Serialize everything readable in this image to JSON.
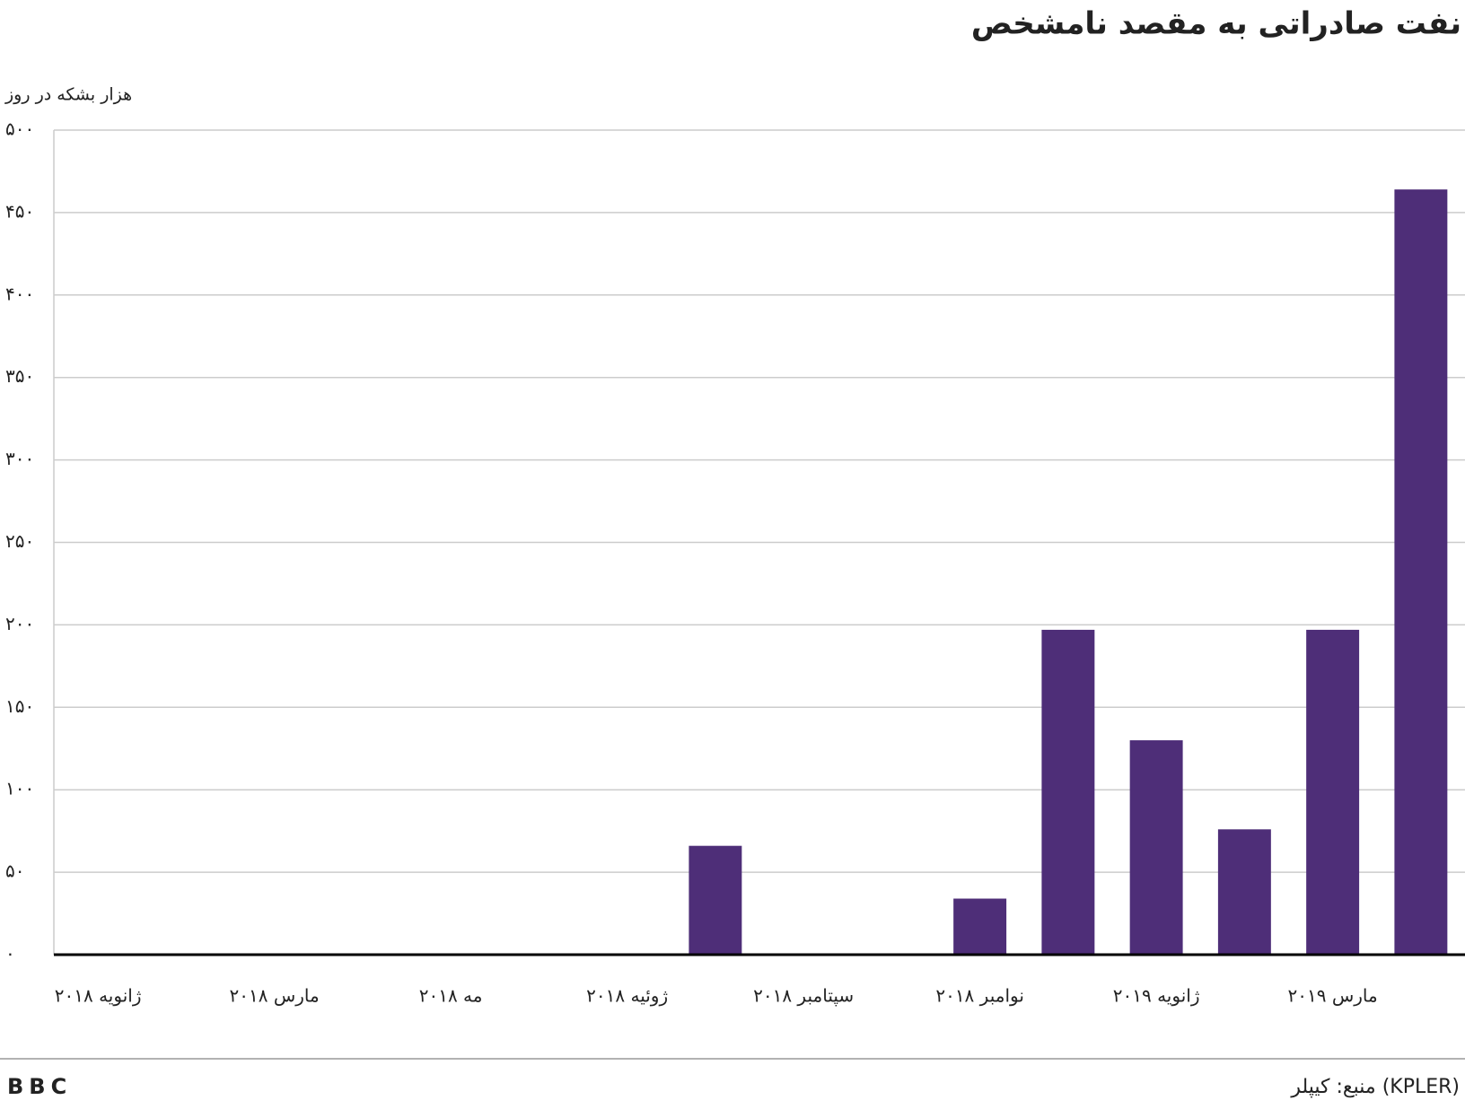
{
  "chart_data": {
    "type": "bar",
    "title": "نفت صادراتی به مقصد نامشخص",
    "y_label": "هزار بشکه در روز",
    "source": "منبع: کیپلر (KPLER)",
    "logo": "BBC",
    "categories": [
      "ژانویه ۲۰۱۸",
      null,
      "مارس ۲۰۱۸",
      null,
      "مه ۲۰۱۸",
      null,
      "ژوئیه ۲۰۱۸",
      null,
      "سپتامبر ۲۰۱۸",
      null,
      "نوامبر ۲۰۱۸",
      null,
      "ژانویه ۲۰۱۹",
      null,
      "مارس ۲۰۱۹",
      null
    ],
    "values": [
      0,
      0,
      0,
      0,
      0,
      0,
      0,
      66,
      0,
      0,
      34,
      197,
      130,
      76,
      197,
      464
    ],
    "color": "#4e2e78",
    "ylim": [
      0,
      500
    ],
    "yticks": [
      {
        "value": 0,
        "label": "۰"
      },
      {
        "value": 50,
        "label": "۵۰"
      },
      {
        "value": 100,
        "label": "۱۰۰"
      },
      {
        "value": 150,
        "label": "۱۵۰"
      },
      {
        "value": 200,
        "label": "۲۰۰"
      },
      {
        "value": 250,
        "label": "۲۵۰"
      },
      {
        "value": 300,
        "label": "۳۰۰"
      },
      {
        "value": 350,
        "label": "۳۵۰"
      },
      {
        "value": 400,
        "label": "۴۰۰"
      },
      {
        "value": 450,
        "label": "۴۵۰"
      },
      {
        "value": 500,
        "label": "۵۰۰"
      }
    ],
    "grid": true
  }
}
